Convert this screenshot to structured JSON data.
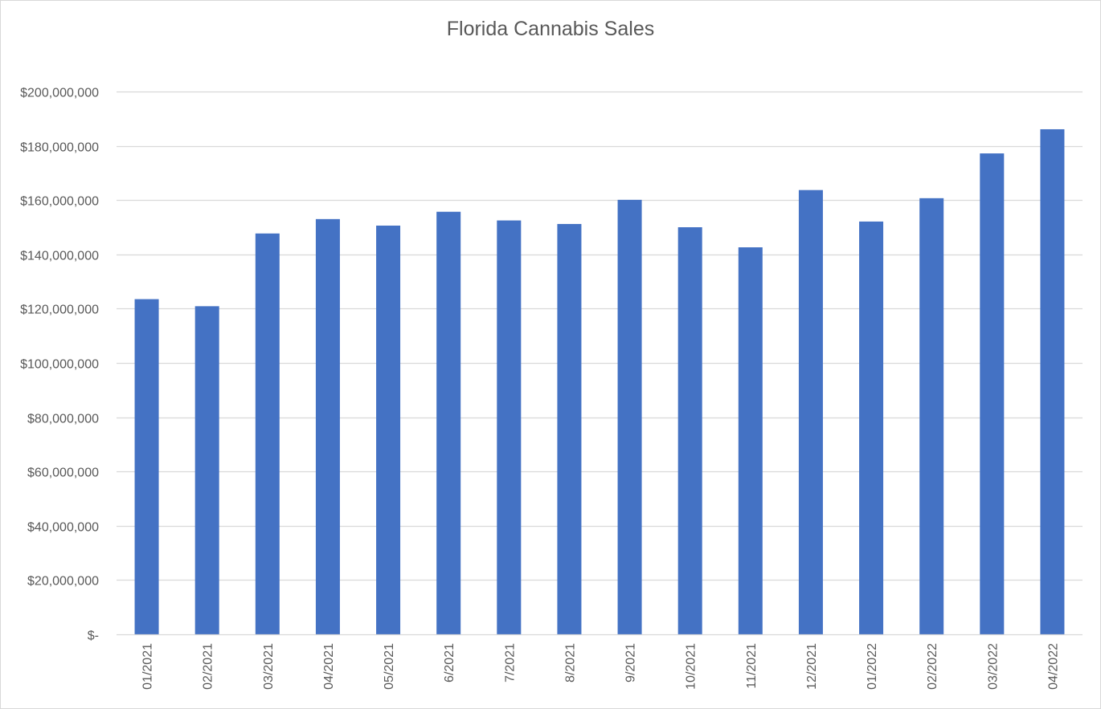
{
  "chart_data": {
    "type": "bar",
    "title": "Florida Cannabis Sales",
    "xlabel": "",
    "ylabel": "",
    "categories": [
      "01/2021",
      "02/2021",
      "03/2021",
      "04/2021",
      "05/2021",
      "6/2021",
      "7/2021",
      "8/2021",
      "9/2021",
      "10/2021",
      "11/2021",
      "12/2021",
      "01/2022",
      "02/2022",
      "03/2022",
      "04/2022"
    ],
    "series": [
      {
        "values": [
          123500000,
          120900000,
          147700000,
          153000000,
          150600000,
          155700000,
          152500000,
          151200000,
          160100000,
          150000000,
          142600000,
          163700000,
          152100000,
          160700000,
          177200000,
          186100000
        ]
      }
    ],
    "ylim": [
      0,
      200000000
    ],
    "yticks": [
      0,
      20000000,
      40000000,
      60000000,
      80000000,
      100000000,
      120000000,
      140000000,
      160000000,
      180000000,
      200000000
    ],
    "ytick_labels": [
      "$-",
      "$20,000,000",
      "$40,000,000",
      "$60,000,000",
      "$80,000,000",
      "$100,000,000",
      "$120,000,000",
      "$140,000,000",
      "$160,000,000",
      "$180,000,000",
      "$200,000,000"
    ],
    "grid": true,
    "legend": "none",
    "colors": {
      "bar": "#4472c4",
      "grid": "#d9d9d9",
      "text": "#595959"
    }
  }
}
